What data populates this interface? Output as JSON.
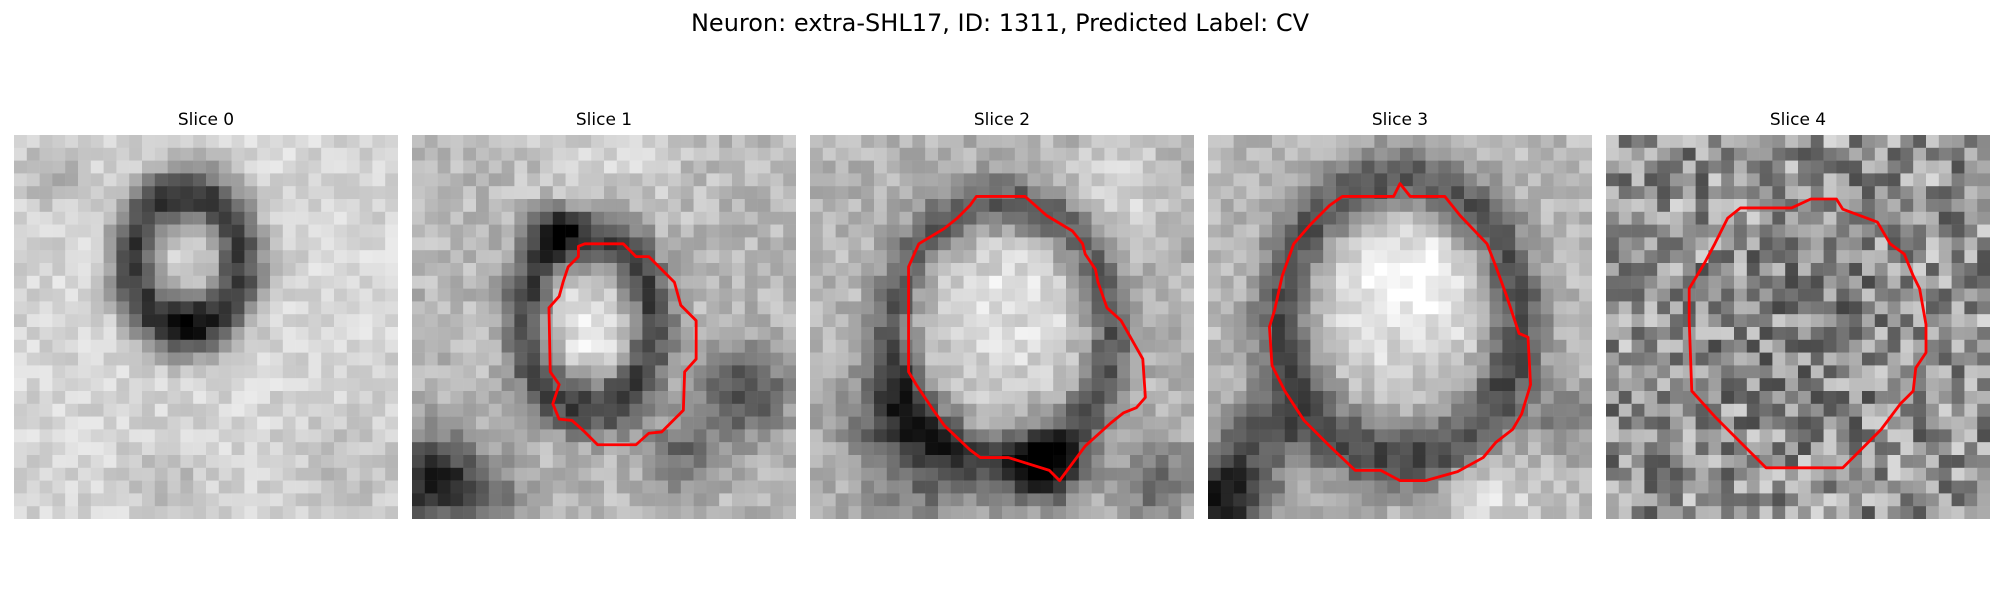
{
  "figure": {
    "title": "Neuron: extra-SHL17, ID: 1311, Predicted Label: CV"
  },
  "panels": [
    {
      "title": "Slice 0",
      "has_contour": false
    },
    {
      "title": "Slice 1",
      "has_contour": true
    },
    {
      "title": "Slice 2",
      "has_contour": true
    },
    {
      "title": "Slice 3",
      "has_contour": true
    },
    {
      "title": "Slice 4",
      "has_contour": true
    }
  ],
  "style": {
    "contour_color": "#ff0000"
  }
}
